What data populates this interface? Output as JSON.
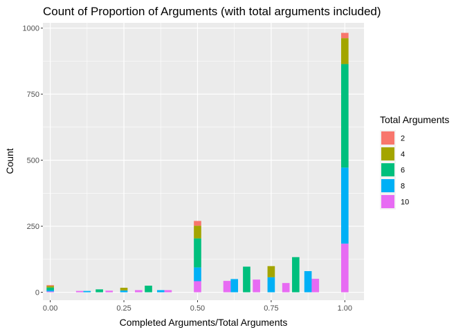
{
  "chart_data": {
    "type": "bar",
    "stacked": true,
    "title": "Count of Proportion of Arguments (with total arguments included)",
    "xlabel": "Completed Arguments/Total Arguments",
    "ylabel": "Count",
    "xlim": [
      -0.025,
      1.065
    ],
    "ylim": [
      -30,
      1020
    ],
    "xticks": [
      0.0,
      0.25,
      0.5,
      0.75,
      1.0
    ],
    "xtick_labels": [
      "0.00",
      "0.25",
      "0.50",
      "0.75",
      "1.00"
    ],
    "yticks": [
      0,
      250,
      500,
      750,
      1000
    ],
    "ytick_labels": [
      "0",
      "250",
      "500",
      "750",
      "1000"
    ],
    "grid": true,
    "legend": {
      "title": "Total Arguments",
      "position": "right",
      "entries": [
        "2",
        "4",
        "6",
        "8",
        "10"
      ]
    },
    "bar_width": 0.025,
    "stack_order_bottom_to_top": [
      "10",
      "8",
      "6",
      "4",
      "2"
    ],
    "series": [
      {
        "name": "2",
        "color": "#F8766D",
        "points": [
          {
            "x": 0.0,
            "y": 3
          },
          {
            "x": 0.5,
            "y": 18
          },
          {
            "x": 1.0,
            "y": 20
          }
        ]
      },
      {
        "name": "4",
        "color": "#A3A500",
        "points": [
          {
            "x": 0.0,
            "y": 6
          },
          {
            "x": 0.25,
            "y": 10
          },
          {
            "x": 0.5,
            "y": 48
          },
          {
            "x": 0.75,
            "y": 42
          },
          {
            "x": 1.0,
            "y": 98
          }
        ]
      },
      {
        "name": "6",
        "color": "#00BF7D",
        "points": [
          {
            "x": 0.0,
            "y": 10
          },
          {
            "x": 0.1667,
            "y": 11
          },
          {
            "x": 0.3333,
            "y": 25
          },
          {
            "x": 0.5,
            "y": 110
          },
          {
            "x": 0.6667,
            "y": 97
          },
          {
            "x": 0.8333,
            "y": 133
          },
          {
            "x": 1.0,
            "y": 392
          }
        ]
      },
      {
        "name": "8",
        "color": "#00B0F6",
        "points": [
          {
            "x": 0.0,
            "y": 5
          },
          {
            "x": 0.125,
            "y": 5
          },
          {
            "x": 0.25,
            "y": 7
          },
          {
            "x": 0.375,
            "y": 8
          },
          {
            "x": 0.5,
            "y": 52
          },
          {
            "x": 0.625,
            "y": 50
          },
          {
            "x": 0.75,
            "y": 57
          },
          {
            "x": 0.875,
            "y": 80
          },
          {
            "x": 1.0,
            "y": 288
          }
        ]
      },
      {
        "name": "10",
        "color": "#E76BF3",
        "points": [
          {
            "x": 0.0,
            "y": 3
          },
          {
            "x": 0.1,
            "y": 5
          },
          {
            "x": 0.2,
            "y": 6
          },
          {
            "x": 0.3,
            "y": 8
          },
          {
            "x": 0.4,
            "y": 8
          },
          {
            "x": 0.5,
            "y": 42
          },
          {
            "x": 0.6,
            "y": 43
          },
          {
            "x": 0.7,
            "y": 48
          },
          {
            "x": 0.8,
            "y": 35
          },
          {
            "x": 0.9,
            "y": 51
          },
          {
            "x": 1.0,
            "y": 184
          }
        ]
      }
    ]
  }
}
